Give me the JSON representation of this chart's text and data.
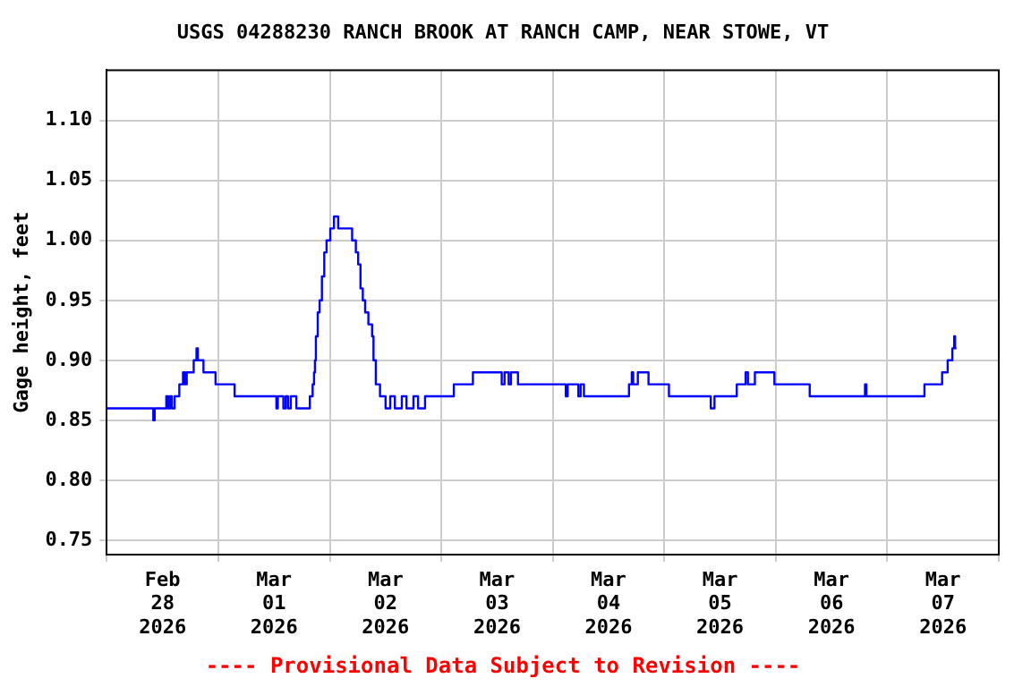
{
  "chart_data": {
    "type": "step",
    "title": "USGS 04288230 RANCH BROOK AT RANCH CAMP, NEAR STOWE, VT",
    "ylabel": "Gage height, feet",
    "annotations": [
      "---- Provisional Data Subject to Revision ----"
    ],
    "xlim": [
      "2026-02-28T00:00",
      "2026-03-08T00:00"
    ],
    "xticks": [
      {
        "value": "2026-02-28T00:00",
        "label": null
      },
      {
        "value": "2026-02-28T12:00",
        "label": "Feb\n28\n2026"
      },
      {
        "value": "2026-03-01T00:00",
        "label": null
      },
      {
        "value": "2026-03-01T12:00",
        "label": "Mar\n01\n2026"
      },
      {
        "value": "2026-03-02T00:00",
        "label": null
      },
      {
        "value": "2026-03-02T12:00",
        "label": "Mar\n02\n2026"
      },
      {
        "value": "2026-03-03T00:00",
        "label": null
      },
      {
        "value": "2026-03-03T12:00",
        "label": "Mar\n03\n2026"
      },
      {
        "value": "2026-03-04T00:00",
        "label": null
      },
      {
        "value": "2026-03-04T12:00",
        "label": "Mar\n04\n2026"
      },
      {
        "value": "2026-03-05T00:00",
        "label": null
      },
      {
        "value": "2026-03-05T12:00",
        "label": "Mar\n05\n2026"
      },
      {
        "value": "2026-03-06T00:00",
        "label": null
      },
      {
        "value": "2026-03-06T12:00",
        "label": "Mar\n06\n2026"
      },
      {
        "value": "2026-03-07T00:00",
        "label": null
      },
      {
        "value": "2026-03-07T12:00",
        "label": "Mar\n07\n2026"
      },
      {
        "value": "2026-03-08T00:00",
        "label": null
      }
    ],
    "ylim": [
      0.738,
      1.142
    ],
    "yticks": [
      {
        "value": 0.75,
        "label": "0.75"
      },
      {
        "value": 0.8,
        "label": "0.80"
      },
      {
        "value": 0.85,
        "label": "0.85"
      },
      {
        "value": 0.9,
        "label": "0.90"
      },
      {
        "value": 0.95,
        "label": "0.95"
      },
      {
        "value": 1.0,
        "label": "1.00"
      },
      {
        "value": 1.05,
        "label": "1.05"
      },
      {
        "value": 1.1,
        "label": "1.10"
      }
    ],
    "grid": true,
    "legend": false,
    "marker": "none",
    "line_style": "solid",
    "series": [
      {
        "color": "#0000ff",
        "x": [
          "2026-02-28T00:00",
          "2026-02-28T10:00",
          "2026-02-28T10:18",
          "2026-02-28T12:48",
          "2026-02-28T13:12",
          "2026-02-28T13:36",
          "2026-02-28T14:00",
          "2026-02-28T14:36",
          "2026-02-28T15:36",
          "2026-02-28T16:24",
          "2026-02-28T16:48",
          "2026-02-28T17:12",
          "2026-02-28T18:42",
          "2026-02-28T19:18",
          "2026-02-28T19:36",
          "2026-02-28T20:48",
          "2026-02-28T23:24",
          "2026-03-01T03:30",
          "2026-03-01T12:30",
          "2026-03-01T12:48",
          "2026-03-01T14:00",
          "2026-03-01T14:30",
          "2026-03-01T15:00",
          "2026-03-01T15:36",
          "2026-03-01T16:48",
          "2026-03-01T19:42",
          "2026-03-01T20:18",
          "2026-03-01T20:36",
          "2026-03-01T20:48",
          "2026-03-01T21:00",
          "2026-03-01T21:24",
          "2026-03-01T21:48",
          "2026-03-01T22:18",
          "2026-03-01T22:48",
          "2026-03-01T23:18",
          "2026-03-02T00:06",
          "2026-03-02T00:54",
          "2026-03-02T01:48",
          "2026-03-02T04:48",
          "2026-03-02T05:36",
          "2026-03-02T06:06",
          "2026-03-02T06:36",
          "2026-03-02T07:06",
          "2026-03-02T07:36",
          "2026-03-02T08:18",
          "2026-03-02T09:06",
          "2026-03-02T09:24",
          "2026-03-02T09:54",
          "2026-03-02T10:48",
          "2026-03-02T12:00",
          "2026-03-02T13:00",
          "2026-03-02T14:00",
          "2026-03-02T15:30",
          "2026-03-02T16:30",
          "2026-03-02T18:00",
          "2026-03-02T19:00",
          "2026-03-02T20:30",
          "2026-03-03T02:42",
          "2026-03-03T06:48",
          "2026-03-03T13:00",
          "2026-03-03T13:36",
          "2026-03-03T14:30",
          "2026-03-03T15:00",
          "2026-03-03T16:30",
          "2026-03-04T02:48",
          "2026-03-04T03:12",
          "2026-03-04T05:30",
          "2026-03-04T06:00",
          "2026-03-04T06:42",
          "2026-03-04T16:24",
          "2026-03-04T17:00",
          "2026-03-04T17:18",
          "2026-03-04T18:18",
          "2026-03-04T20:36",
          "2026-03-05T01:00",
          "2026-03-05T10:00",
          "2026-03-05T10:48",
          "2026-03-05T15:36",
          "2026-03-05T17:30",
          "2026-03-05T18:00",
          "2026-03-05T19:30",
          "2026-03-05T23:42",
          "2026-03-06T07:18",
          "2026-03-06T19:12",
          "2026-03-06T19:30",
          "2026-03-07T08:00",
          "2026-03-07T11:48",
          "2026-03-07T13:00",
          "2026-03-07T14:00",
          "2026-03-07T14:24",
          "2026-03-07T14:36",
          "2026-03-07T14:54"
        ],
        "values": [
          0.86,
          0.85,
          0.86,
          0.87,
          0.86,
          0.87,
          0.86,
          0.87,
          0.88,
          0.89,
          0.88,
          0.89,
          0.9,
          0.91,
          0.9,
          0.89,
          0.88,
          0.87,
          0.86,
          0.87,
          0.86,
          0.87,
          0.86,
          0.87,
          0.86,
          0.87,
          0.88,
          0.89,
          0.9,
          0.92,
          0.94,
          0.95,
          0.97,
          0.99,
          1.0,
          1.01,
          1.02,
          1.01,
          1.0,
          0.99,
          0.98,
          0.96,
          0.95,
          0.94,
          0.93,
          0.92,
          0.9,
          0.88,
          0.87,
          0.86,
          0.87,
          0.86,
          0.87,
          0.86,
          0.87,
          0.86,
          0.87,
          0.88,
          0.89,
          0.88,
          0.89,
          0.88,
          0.89,
          0.88,
          0.87,
          0.88,
          0.87,
          0.88,
          0.87,
          0.88,
          0.89,
          0.88,
          0.89,
          0.88,
          0.87,
          0.86,
          0.87,
          0.88,
          0.89,
          0.88,
          0.89,
          0.88,
          0.87,
          0.88,
          0.87,
          0.88,
          0.89,
          0.9,
          0.91,
          0.92,
          0.91,
          0.91
        ]
      }
    ]
  }
}
